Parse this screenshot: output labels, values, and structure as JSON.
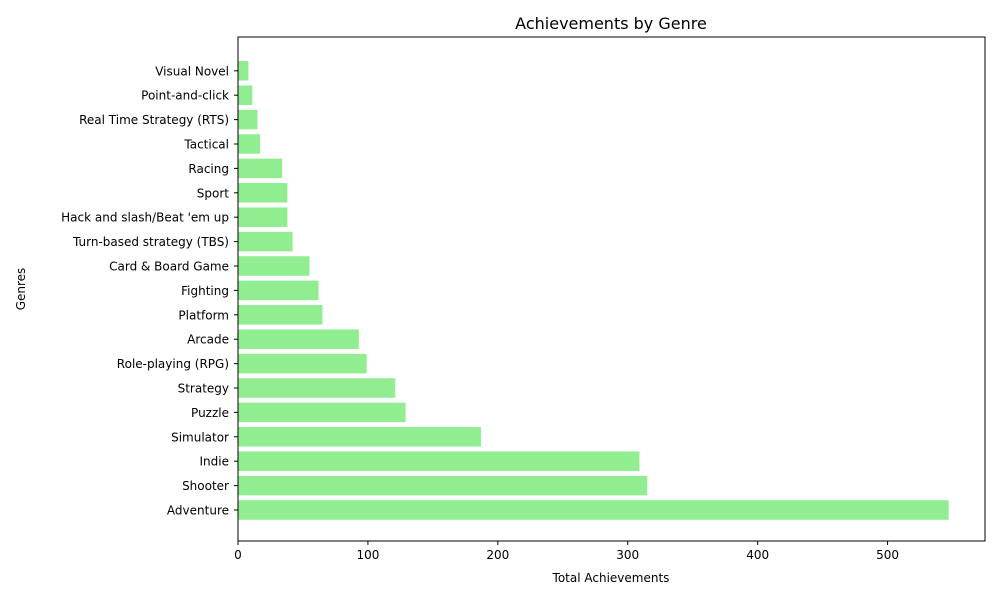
{
  "chart_data": {
    "type": "bar",
    "orientation": "horizontal",
    "title": "Achievements by Genre",
    "xlabel": "Total Achievements",
    "ylabel": "Genres",
    "categories": [
      "Adventure",
      "Shooter",
      "Indie",
      "Simulator",
      "Puzzle",
      "Strategy",
      "Role-playing (RPG)",
      "Arcade",
      "Platform",
      "Fighting",
      "Card & Board Game",
      "Turn-based strategy (TBS)",
      "Hack and slash/Beat 'em up",
      "Sport",
      "Racing",
      "Tactical",
      "Real Time Strategy (RTS)",
      "Point-and-click",
      "Visual Novel"
    ],
    "values": [
      547,
      315,
      309,
      187,
      129,
      121,
      99,
      93,
      65,
      62,
      55,
      42,
      38,
      38,
      34,
      17,
      15,
      11,
      8
    ],
    "xlim": [
      0,
      575
    ],
    "xticks": [
      0,
      100,
      200,
      300,
      400,
      500
    ],
    "bar_color": "#90ee90",
    "grid": false,
    "legend": "none"
  }
}
